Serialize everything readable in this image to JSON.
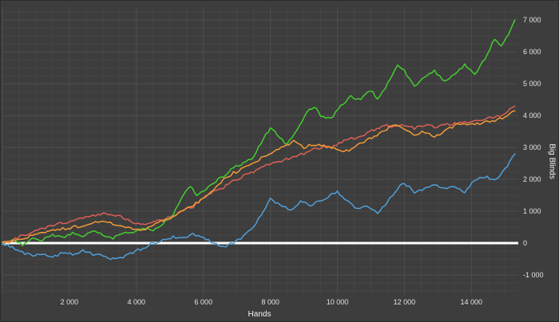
{
  "chart_data": {
    "type": "line",
    "title": "",
    "xlabel": "Hands",
    "ylabel": "Big Blinds",
    "xlim": [
      0,
      15400
    ],
    "ylim": [
      -1600,
      7400
    ],
    "x_ticks": [
      2000,
      4000,
      6000,
      8000,
      10000,
      12000,
      14000
    ],
    "y_ticks": [
      -1000,
      0,
      1000,
      2000,
      3000,
      4000,
      5000,
      6000,
      7000
    ],
    "grid": {
      "minor_x_step": 500,
      "minor_y_step": 250,
      "major_x_step": 2000,
      "major_y_step": 1000,
      "minor_color": "#454545",
      "major_color": "#4d4d4d"
    },
    "zero_line": {
      "value": 0,
      "color": "#ffffff",
      "width": 3
    },
    "background": "#3d3d3d",
    "legend": "none",
    "series": [
      {
        "name": "green",
        "color": "#44cc30",
        "points": [
          [
            0,
            0
          ],
          [
            300,
            100
          ],
          [
            600,
            -50
          ],
          [
            900,
            150
          ],
          [
            1200,
            100
          ],
          [
            1500,
            250
          ],
          [
            1800,
            150
          ],
          [
            2100,
            300
          ],
          [
            2400,
            200
          ],
          [
            2700,
            400
          ],
          [
            3000,
            250
          ],
          [
            3300,
            150
          ],
          [
            3600,
            300
          ],
          [
            3900,
            350
          ],
          [
            4200,
            500
          ],
          [
            4500,
            400
          ],
          [
            4800,
            600
          ],
          [
            5100,
            900
          ],
          [
            5400,
            1500
          ],
          [
            5600,
            1800
          ],
          [
            5800,
            1500
          ],
          [
            6000,
            1600
          ],
          [
            6300,
            1900
          ],
          [
            6600,
            2100
          ],
          [
            6900,
            2400
          ],
          [
            7200,
            2500
          ],
          [
            7500,
            2700
          ],
          [
            7800,
            3300
          ],
          [
            8000,
            3600
          ],
          [
            8200,
            3400
          ],
          [
            8500,
            3100
          ],
          [
            8800,
            3600
          ],
          [
            9100,
            4100
          ],
          [
            9300,
            4300
          ],
          [
            9500,
            4000
          ],
          [
            9800,
            3900
          ],
          [
            10100,
            4300
          ],
          [
            10400,
            4600
          ],
          [
            10700,
            4500
          ],
          [
            11000,
            4800
          ],
          [
            11200,
            4500
          ],
          [
            11500,
            5000
          ],
          [
            11800,
            5600
          ],
          [
            12000,
            5400
          ],
          [
            12300,
            4900
          ],
          [
            12600,
            5200
          ],
          [
            12900,
            5400
          ],
          [
            13200,
            5100
          ],
          [
            13500,
            5300
          ],
          [
            13800,
            5600
          ],
          [
            14100,
            5300
          ],
          [
            14400,
            5800
          ],
          [
            14700,
            6400
          ],
          [
            14900,
            6200
          ],
          [
            15100,
            6500
          ],
          [
            15300,
            7000
          ]
        ]
      },
      {
        "name": "red",
        "color": "#dd5f55",
        "points": [
          [
            0,
            0
          ],
          [
            300,
            100
          ],
          [
            600,
            250
          ],
          [
            900,
            350
          ],
          [
            1200,
            450
          ],
          [
            1500,
            550
          ],
          [
            1800,
            650
          ],
          [
            2100,
            700
          ],
          [
            2400,
            800
          ],
          [
            2700,
            850
          ],
          [
            3000,
            900
          ],
          [
            3300,
            880
          ],
          [
            3600,
            800
          ],
          [
            3900,
            650
          ],
          [
            4200,
            600
          ],
          [
            4500,
            700
          ],
          [
            4800,
            750
          ],
          [
            5100,
            850
          ],
          [
            5400,
            1000
          ],
          [
            5700,
            1150
          ],
          [
            6000,
            1400
          ],
          [
            6300,
            1600
          ],
          [
            6600,
            1750
          ],
          [
            6900,
            1950
          ],
          [
            7200,
            2100
          ],
          [
            7500,
            2250
          ],
          [
            7800,
            2400
          ],
          [
            8100,
            2500
          ],
          [
            8400,
            2600
          ],
          [
            8700,
            2700
          ],
          [
            9000,
            2800
          ],
          [
            9300,
            2950
          ],
          [
            9600,
            3000
          ],
          [
            9900,
            3050
          ],
          [
            10200,
            3200
          ],
          [
            10500,
            3300
          ],
          [
            10800,
            3400
          ],
          [
            11100,
            3550
          ],
          [
            11400,
            3700
          ],
          [
            11700,
            3650
          ],
          [
            12000,
            3700
          ],
          [
            12300,
            3600
          ],
          [
            12600,
            3700
          ],
          [
            12900,
            3650
          ],
          [
            13200,
            3700
          ],
          [
            13500,
            3750
          ],
          [
            13800,
            3800
          ],
          [
            14100,
            3850
          ],
          [
            14400,
            3900
          ],
          [
            14700,
            3950
          ],
          [
            15000,
            4050
          ],
          [
            15300,
            4300
          ]
        ]
      },
      {
        "name": "orange",
        "color": "#f19a37",
        "points": [
          [
            0,
            0
          ],
          [
            300,
            50
          ],
          [
            600,
            150
          ],
          [
            900,
            250
          ],
          [
            1200,
            300
          ],
          [
            1500,
            400
          ],
          [
            1800,
            450
          ],
          [
            2100,
            500
          ],
          [
            2400,
            550
          ],
          [
            2700,
            650
          ],
          [
            3000,
            700
          ],
          [
            3300,
            600
          ],
          [
            3600,
            500
          ],
          [
            3900,
            450
          ],
          [
            4200,
            400
          ],
          [
            4500,
            550
          ],
          [
            4800,
            700
          ],
          [
            5100,
            800
          ],
          [
            5400,
            1000
          ],
          [
            5700,
            1200
          ],
          [
            6000,
            1400
          ],
          [
            6300,
            1700
          ],
          [
            6600,
            2000
          ],
          [
            6900,
            2200
          ],
          [
            7200,
            2350
          ],
          [
            7500,
            2500
          ],
          [
            7800,
            2700
          ],
          [
            8100,
            2900
          ],
          [
            8400,
            3000
          ],
          [
            8700,
            3200
          ],
          [
            9000,
            3000
          ],
          [
            9300,
            3100
          ],
          [
            9600,
            3050
          ],
          [
            9900,
            3000
          ],
          [
            10200,
            2850
          ],
          [
            10500,
            3000
          ],
          [
            10800,
            3200
          ],
          [
            11100,
            3350
          ],
          [
            11400,
            3550
          ],
          [
            11700,
            3700
          ],
          [
            12000,
            3550
          ],
          [
            12300,
            3400
          ],
          [
            12600,
            3500
          ],
          [
            12900,
            3350
          ],
          [
            13200,
            3500
          ],
          [
            13500,
            3700
          ],
          [
            13800,
            3750
          ],
          [
            14100,
            3700
          ],
          [
            14400,
            3800
          ],
          [
            14700,
            3850
          ],
          [
            15000,
            3950
          ],
          [
            15300,
            4150
          ]
        ]
      },
      {
        "name": "blue",
        "color": "#4f9fd9",
        "points": [
          [
            0,
            0
          ],
          [
            300,
            -150
          ],
          [
            600,
            -300
          ],
          [
            900,
            -400
          ],
          [
            1200,
            -350
          ],
          [
            1500,
            -450
          ],
          [
            1800,
            -300
          ],
          [
            2100,
            -350
          ],
          [
            2400,
            -250
          ],
          [
            2700,
            -350
          ],
          [
            3000,
            -400
          ],
          [
            3300,
            -500
          ],
          [
            3600,
            -450
          ],
          [
            3900,
            -300
          ],
          [
            4200,
            -150
          ],
          [
            4500,
            0
          ],
          [
            4800,
            100
          ],
          [
            5100,
            200
          ],
          [
            5400,
            150
          ],
          [
            5700,
            300
          ],
          [
            6000,
            150
          ],
          [
            6300,
            0
          ],
          [
            6600,
            -100
          ],
          [
            6900,
            0
          ],
          [
            7200,
            200
          ],
          [
            7500,
            500
          ],
          [
            7800,
            1000
          ],
          [
            8000,
            1400
          ],
          [
            8300,
            1200
          ],
          [
            8600,
            1050
          ],
          [
            8900,
            1300
          ],
          [
            9200,
            1200
          ],
          [
            9500,
            1350
          ],
          [
            9800,
            1500
          ],
          [
            10000,
            1600
          ],
          [
            10300,
            1300
          ],
          [
            10600,
            1050
          ],
          [
            10900,
            1150
          ],
          [
            11200,
            950
          ],
          [
            11500,
            1300
          ],
          [
            11800,
            1700
          ],
          [
            12000,
            1900
          ],
          [
            12300,
            1600
          ],
          [
            12600,
            1700
          ],
          [
            12900,
            1800
          ],
          [
            13200,
            1700
          ],
          [
            13500,
            1750
          ],
          [
            13800,
            1600
          ],
          [
            14100,
            2000
          ],
          [
            14400,
            2100
          ],
          [
            14700,
            1950
          ],
          [
            15000,
            2300
          ],
          [
            15300,
            2800
          ]
        ]
      }
    ]
  }
}
